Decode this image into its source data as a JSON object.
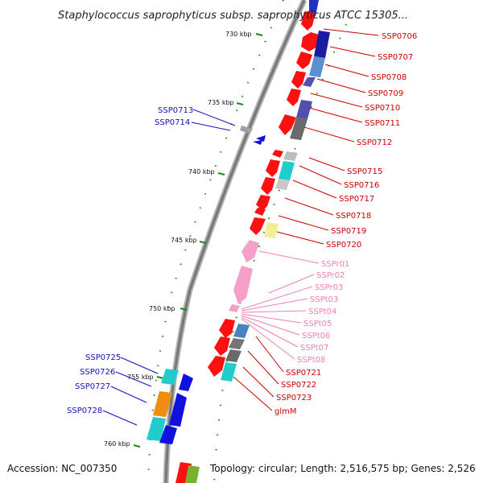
{
  "title": "Staphylococcus saprophyticus subsp. saprophyticus ATCC 15305...",
  "footer": {
    "accession": "Accession: NC_007350",
    "stats": "Topology: circular; Length: 2,516,575 bp; Genes: 2,526"
  },
  "kbp_ticks": [
    "730 kbp",
    "735 kbp",
    "740 kbp",
    "745 kbp",
    "750 kbp",
    "755 kbp",
    "760 kbp"
  ],
  "colors": {
    "backbone": "#888888",
    "right_gene_label": "#cc0000",
    "right_rna_label": "#f080b0",
    "left_gene_label": "#1010c0",
    "tick_mark": "#1a8a1a"
  },
  "labels_right": [
    "SSP0706",
    "SSP0707",
    "SSP0708",
    "SSP0709",
    "SSP0710",
    "SSP0711",
    "SSP0712",
    "SSP0715",
    "SSP0716",
    "SSP0717",
    "SSP0718",
    "SSP0719",
    "SSP0720",
    "SSP0721",
    "SSP0722",
    "SSP0723",
    "glmM"
  ],
  "labels_rna": [
    "SSPr01",
    "SSPr02",
    "SSPr03",
    "SSPt03",
    "SSPt04",
    "SSPt05",
    "SSPt06",
    "SSPt07",
    "SSPt08"
  ],
  "labels_left": [
    "SSP0713",
    "SSP0714",
    "SSP0725",
    "SSP0726",
    "SSP0727",
    "SSP0728"
  ]
}
